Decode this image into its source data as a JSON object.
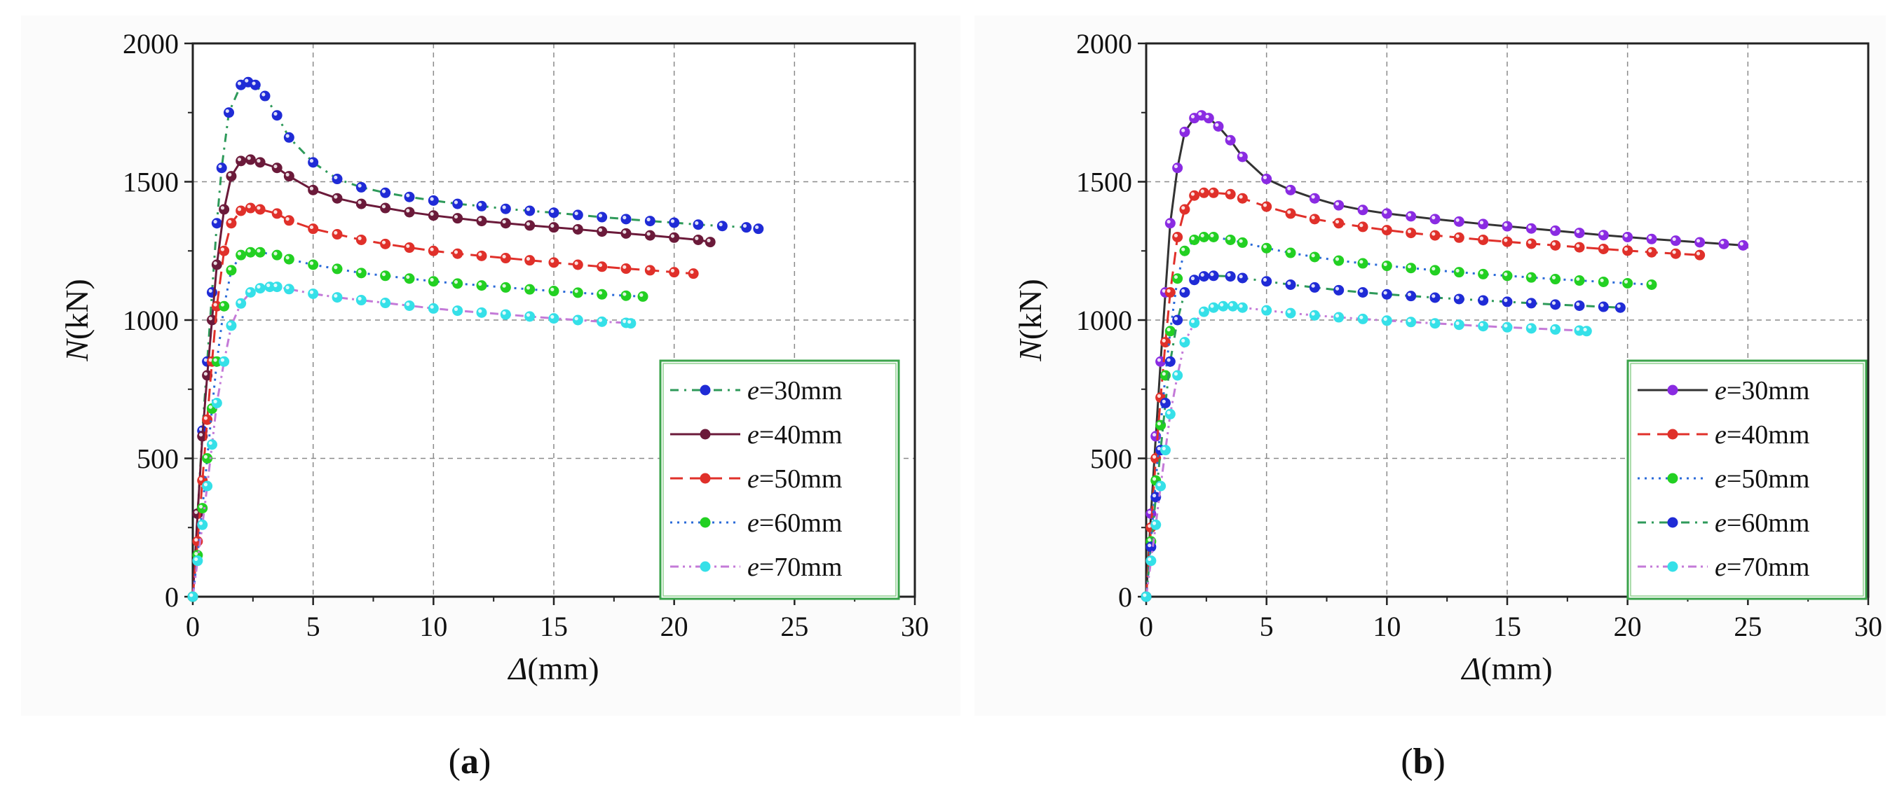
{
  "chart_data": [
    {
      "type": "line",
      "panel": "a",
      "caption_open": "(",
      "caption_letter": "a",
      "caption_close": ")",
      "xlabel_sym": "Δ",
      "xlabel_unit": "(mm)",
      "ylabel_sym": "N",
      "ylabel_unit": "(kN)",
      "xlim": [
        0,
        30
      ],
      "ylim": [
        0,
        2000
      ],
      "xticks": [
        0,
        5,
        10,
        15,
        20,
        25,
        30
      ],
      "yticks": [
        0,
        500,
        1000,
        1500,
        2000
      ],
      "grid": true,
      "legend_position": "bottom-right",
      "series": [
        {
          "name": "e=30mm",
          "e_sym": "e",
          "e_val": "=30mm",
          "line_color": "#2e9a5a",
          "marker_color": "#1f2bd6",
          "dash": "12,8,3,8",
          "x": [
            0,
            0.2,
            0.4,
            0.6,
            0.8,
            1.0,
            1.2,
            1.5,
            2.0,
            2.3,
            2.6,
            3.0,
            3.5,
            4.0,
            5.0,
            6.0,
            7.0,
            8.0,
            9.0,
            10.0,
            11.0,
            12.0,
            13.0,
            14.0,
            15.0,
            16.0,
            17.0,
            18.0,
            19.0,
            20.0,
            21.0,
            22.0,
            23.0,
            23.5
          ],
          "y": [
            0,
            300,
            600,
            850,
            1100,
            1350,
            1550,
            1750,
            1850,
            1860,
            1850,
            1810,
            1740,
            1660,
            1570,
            1510,
            1480,
            1460,
            1445,
            1432,
            1420,
            1412,
            1402,
            1395,
            1388,
            1380,
            1372,
            1365,
            1358,
            1352,
            1345,
            1340,
            1335,
            1330
          ]
        },
        {
          "name": "e=40mm",
          "e_sym": "e",
          "e_val": "=40mm",
          "line_color": "#6b1a3a",
          "marker_color": "#6b1a3a",
          "dash": "",
          "x": [
            0,
            0.2,
            0.4,
            0.6,
            0.8,
            1.0,
            1.3,
            1.6,
            2.0,
            2.4,
            2.8,
            3.5,
            4.0,
            5.0,
            6.0,
            7.0,
            8.0,
            9.0,
            10.0,
            11.0,
            12.0,
            13.0,
            14.0,
            15.0,
            16.0,
            17.0,
            18.0,
            19.0,
            20.0,
            21.0,
            21.5
          ],
          "y": [
            0,
            300,
            580,
            800,
            1000,
            1200,
            1400,
            1520,
            1575,
            1580,
            1570,
            1550,
            1520,
            1470,
            1440,
            1420,
            1405,
            1390,
            1378,
            1368,
            1358,
            1350,
            1342,
            1335,
            1328,
            1320,
            1313,
            1306,
            1298,
            1290,
            1282
          ]
        },
        {
          "name": "e=50mm",
          "e_sym": "e",
          "e_val": "=50mm",
          "line_color": "#e0302a",
          "marker_color": "#e0302a",
          "dash": "18,10",
          "x": [
            0,
            0.2,
            0.4,
            0.6,
            0.8,
            1.0,
            1.3,
            1.6,
            2.0,
            2.4,
            2.8,
            3.5,
            4.0,
            5.0,
            6.0,
            7.0,
            8.0,
            9.0,
            10.0,
            11.0,
            12.0,
            13.0,
            14.0,
            15.0,
            16.0,
            17.0,
            18.0,
            19.0,
            20.0,
            20.8
          ],
          "y": [
            0,
            200,
            420,
            640,
            850,
            1050,
            1250,
            1350,
            1395,
            1405,
            1400,
            1385,
            1360,
            1330,
            1310,
            1290,
            1275,
            1262,
            1250,
            1240,
            1232,
            1224,
            1216,
            1208,
            1200,
            1193,
            1186,
            1180,
            1173,
            1168
          ]
        },
        {
          "name": "e=60mm",
          "e_sym": "e",
          "e_val": "=60mm",
          "line_color": "#2a6ad8",
          "marker_color": "#22d022",
          "dash": "3,7",
          "x": [
            0,
            0.2,
            0.4,
            0.6,
            0.8,
            1.0,
            1.3,
            1.6,
            2.0,
            2.4,
            2.8,
            3.5,
            4.0,
            5.0,
            6.0,
            7.0,
            8.0,
            9.0,
            10.0,
            11.0,
            12.0,
            13.0,
            14.0,
            15.0,
            16.0,
            17.0,
            18.0,
            18.7
          ],
          "y": [
            0,
            150,
            320,
            500,
            680,
            850,
            1050,
            1180,
            1235,
            1245,
            1245,
            1235,
            1220,
            1200,
            1185,
            1170,
            1160,
            1150,
            1140,
            1132,
            1125,
            1118,
            1111,
            1105,
            1099,
            1093,
            1088,
            1085
          ]
        },
        {
          "name": "e=70mm",
          "e_sym": "e",
          "e_val": "=70mm",
          "line_color": "#c47ad8",
          "marker_color": "#35e0e8",
          "dash": "12,6,3,6,3,6",
          "x": [
            0,
            0.2,
            0.4,
            0.6,
            0.8,
            1.0,
            1.3,
            1.6,
            2.0,
            2.4,
            2.8,
            3.2,
            3.5,
            4.0,
            5.0,
            6.0,
            7.0,
            8.0,
            9.0,
            10.0,
            11.0,
            12.0,
            13.0,
            14.0,
            15.0,
            16.0,
            17.0,
            18.0,
            18.2
          ],
          "y": [
            0,
            130,
            260,
            400,
            550,
            700,
            850,
            980,
            1060,
            1100,
            1115,
            1120,
            1120,
            1112,
            1095,
            1082,
            1072,
            1062,
            1052,
            1042,
            1034,
            1027,
            1020,
            1013,
            1006,
            1000,
            994,
            990,
            988
          ]
        }
      ]
    },
    {
      "type": "line",
      "panel": "b",
      "caption_open": "(",
      "caption_letter": "b",
      "caption_close": ")",
      "xlabel_sym": "Δ",
      "xlabel_unit": "(mm)",
      "ylabel_sym": "N",
      "ylabel_unit": "(kN)",
      "xlim": [
        0,
        30
      ],
      "ylim": [
        0,
        2000
      ],
      "xticks": [
        0,
        5,
        10,
        15,
        20,
        25,
        30
      ],
      "yticks": [
        0,
        500,
        1000,
        1500,
        2000
      ],
      "grid": true,
      "legend_position": "bottom-right",
      "series": [
        {
          "name": "e=30mm",
          "e_sym": "e",
          "e_val": "=30mm",
          "line_color": "#333333",
          "marker_color": "#8a2be2",
          "dash": "",
          "x": [
            0,
            0.2,
            0.4,
            0.6,
            0.8,
            1.0,
            1.3,
            1.6,
            2.0,
            2.3,
            2.6,
            3.0,
            3.5,
            4.0,
            5.0,
            6.0,
            7.0,
            8.0,
            9.0,
            10.0,
            11.0,
            12.0,
            13.0,
            14.0,
            15.0,
            16.0,
            17.0,
            18.0,
            19.0,
            20.0,
            21.0,
            22.0,
            23.0,
            24.0,
            24.8
          ],
          "y": [
            0,
            300,
            580,
            850,
            1100,
            1350,
            1550,
            1680,
            1730,
            1740,
            1730,
            1700,
            1650,
            1590,
            1510,
            1470,
            1440,
            1415,
            1398,
            1385,
            1375,
            1365,
            1356,
            1347,
            1339,
            1331,
            1323,
            1315,
            1307,
            1300,
            1293,
            1287,
            1281,
            1275,
            1270
          ]
        },
        {
          "name": "e=40mm",
          "e_sym": "e",
          "e_val": "=40mm",
          "line_color": "#e0302a",
          "marker_color": "#e0302a",
          "dash": "18,10",
          "x": [
            0,
            0.2,
            0.4,
            0.6,
            0.8,
            1.0,
            1.3,
            1.6,
            2.0,
            2.4,
            2.8,
            3.5,
            4.0,
            5.0,
            6.0,
            7.0,
            8.0,
            9.0,
            10.0,
            11.0,
            12.0,
            13.0,
            14.0,
            15.0,
            16.0,
            17.0,
            18.0,
            19.0,
            20.0,
            21.0,
            22.0,
            23.0
          ],
          "y": [
            0,
            250,
            500,
            720,
            920,
            1100,
            1300,
            1400,
            1450,
            1460,
            1460,
            1455,
            1440,
            1410,
            1385,
            1365,
            1350,
            1337,
            1325,
            1315,
            1306,
            1298,
            1290,
            1283,
            1276,
            1270,
            1263,
            1257,
            1251,
            1245,
            1240,
            1235
          ]
        },
        {
          "name": "e=50mm",
          "e_sym": "e",
          "e_val": "=50mm",
          "line_color": "#2a6ad8",
          "marker_color": "#22d022",
          "dash": "3,7",
          "x": [
            0,
            0.2,
            0.4,
            0.6,
            0.8,
            1.0,
            1.3,
            1.6,
            2.0,
            2.4,
            2.8,
            3.5,
            4.0,
            5.0,
            6.0,
            7.0,
            8.0,
            9.0,
            10.0,
            11.0,
            12.0,
            13.0,
            14.0,
            15.0,
            16.0,
            17.0,
            18.0,
            19.0,
            20.0,
            21.0
          ],
          "y": [
            0,
            200,
            420,
            620,
            800,
            960,
            1150,
            1250,
            1290,
            1300,
            1300,
            1290,
            1280,
            1260,
            1243,
            1228,
            1215,
            1205,
            1196,
            1188,
            1180,
            1173,
            1166,
            1160,
            1154,
            1148,
            1143,
            1138,
            1133,
            1128
          ]
        },
        {
          "name": "e=60mm",
          "e_sym": "e",
          "e_val": "=60mm",
          "line_color": "#2e9a5a",
          "marker_color": "#1f2bd6",
          "dash": "12,8,3,8",
          "x": [
            0,
            0.2,
            0.4,
            0.6,
            0.8,
            1.0,
            1.3,
            1.6,
            2.0,
            2.4,
            2.8,
            3.5,
            4.0,
            5.0,
            6.0,
            7.0,
            8.0,
            9.0,
            10.0,
            11.0,
            12.0,
            13.0,
            14.0,
            15.0,
            16.0,
            17.0,
            18.0,
            19.0,
            19.7
          ],
          "y": [
            0,
            180,
            360,
            530,
            700,
            850,
            1000,
            1100,
            1145,
            1158,
            1160,
            1158,
            1152,
            1140,
            1128,
            1118,
            1108,
            1100,
            1093,
            1087,
            1081,
            1076,
            1071,
            1066,
            1061,
            1056,
            1052,
            1048,
            1045
          ]
        },
        {
          "name": "e=70mm",
          "e_sym": "e",
          "e_val": "=70mm",
          "line_color": "#c47ad8",
          "marker_color": "#35e0e8",
          "dash": "12,6,3,6,3,6",
          "x": [
            0,
            0.2,
            0.4,
            0.6,
            0.8,
            1.0,
            1.3,
            1.6,
            2.0,
            2.4,
            2.8,
            3.2,
            3.6,
            4.0,
            5.0,
            6.0,
            7.0,
            8.0,
            9.0,
            10.0,
            11.0,
            12.0,
            13.0,
            14.0,
            15.0,
            16.0,
            17.0,
            18.0,
            18.3
          ],
          "y": [
            0,
            130,
            260,
            400,
            530,
            660,
            800,
            920,
            990,
            1030,
            1045,
            1050,
            1050,
            1045,
            1035,
            1025,
            1017,
            1010,
            1004,
            998,
            993,
            988,
            983,
            978,
            974,
            970,
            966,
            962,
            960
          ]
        }
      ]
    }
  ]
}
